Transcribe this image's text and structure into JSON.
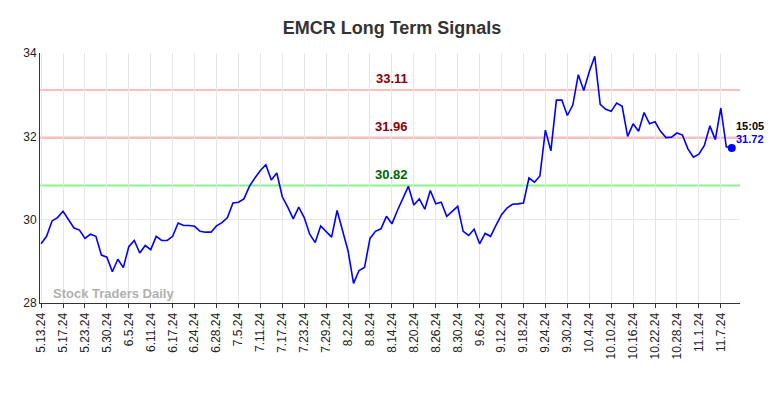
{
  "chart_data": {
    "type": "line",
    "title": "EMCR Long Term Signals",
    "categories": [
      "5.13.24",
      null,
      null,
      null,
      "5.17.24",
      null,
      null,
      null,
      "5.23.24",
      null,
      null,
      null,
      "5.30.24",
      null,
      null,
      null,
      "6.5.24",
      null,
      null,
      null,
      "6.11.24",
      null,
      null,
      null,
      "6.17.24",
      null,
      null,
      null,
      "6.24.24",
      null,
      null,
      null,
      "6.28.24",
      null,
      null,
      null,
      "7.5.24",
      null,
      null,
      null,
      "7.11.24",
      null,
      null,
      null,
      "7.17.24",
      null,
      null,
      null,
      "7.23.24",
      null,
      null,
      null,
      "7.29.24",
      null,
      null,
      null,
      "8.2.24",
      null,
      null,
      null,
      "8.8.24",
      null,
      null,
      null,
      "8.14.24",
      null,
      null,
      null,
      "8.20.24",
      null,
      null,
      null,
      "8.26.24",
      null,
      null,
      null,
      "8.30.24",
      null,
      null,
      null,
      "9.6.24",
      null,
      null,
      null,
      "9.12.24",
      null,
      null,
      null,
      "9.18.24",
      null,
      null,
      null,
      "9.24.24",
      null,
      null,
      null,
      "9.30.24",
      null,
      null,
      null,
      "10.4.24",
      null,
      null,
      null,
      "10.10.24",
      null,
      null,
      null,
      "10.16.24",
      null,
      null,
      null,
      "10.22.24",
      null,
      null,
      null,
      "10.28.24",
      null,
      null,
      null,
      "11.1.24",
      null,
      null,
      null,
      "11.7.24",
      null,
      null
    ],
    "values": [
      29.42,
      29.6,
      29.97,
      30.05,
      30.2,
      30.0,
      29.8,
      29.75,
      29.55,
      29.65,
      29.6,
      29.15,
      29.1,
      28.75,
      29.05,
      28.85,
      29.35,
      29.5,
      29.2,
      29.38,
      29.28,
      29.6,
      29.5,
      29.5,
      29.6,
      29.92,
      29.86,
      29.86,
      29.84,
      29.72,
      29.7,
      29.7,
      29.85,
      29.93,
      30.05,
      30.4,
      30.42,
      30.5,
      30.8,
      31.0,
      31.18,
      31.32,
      30.95,
      31.12,
      30.55,
      30.3,
      30.02,
      30.3,
      30.05,
      29.65,
      29.45,
      29.85,
      29.72,
      29.58,
      30.22,
      29.7,
      29.25,
      28.47,
      28.78,
      28.85,
      29.55,
      29.72,
      29.78,
      30.08,
      29.9,
      30.22,
      30.5,
      30.8,
      30.35,
      30.5,
      30.25,
      30.7,
      30.38,
      30.42,
      30.08,
      30.2,
      30.32,
      29.72,
      29.62,
      29.77,
      29.42,
      29.67,
      29.6,
      29.87,
      30.12,
      30.28,
      30.37,
      30.38,
      30.4,
      31.0,
      30.9,
      31.05,
      32.15,
      31.65,
      32.87,
      32.87,
      32.5,
      32.75,
      33.48,
      33.1,
      33.55,
      33.92,
      32.77,
      32.65,
      32.6,
      32.8,
      32.72,
      32.0,
      32.3,
      32.12,
      32.57,
      32.3,
      32.35,
      32.12,
      31.97,
      31.98,
      32.08,
      32.03,
      31.7,
      31.5,
      31.57,
      31.78,
      32.25,
      31.92,
      32.68,
      31.75,
      31.72
    ],
    "color": "#0000ff",
    "ylim": [
      28,
      34
    ],
    "yticks": [
      28,
      30,
      32,
      34
    ],
    "grid": true,
    "lines": [
      {
        "value": 33.11,
        "label": "33.11",
        "color": "#ffbcbc",
        "label_color": "#8b0000"
      },
      {
        "value": 31.96,
        "label": "31.96",
        "color": "#ffbcbc",
        "label_color": "#8b0000"
      },
      {
        "value": 30.82,
        "label": "30.82",
        "color": "#90ee90",
        "label_color": "#006400"
      }
    ],
    "watermark": "Stock Traders Daily",
    "last_point": {
      "time": "15:05",
      "value": 31.72
    }
  }
}
